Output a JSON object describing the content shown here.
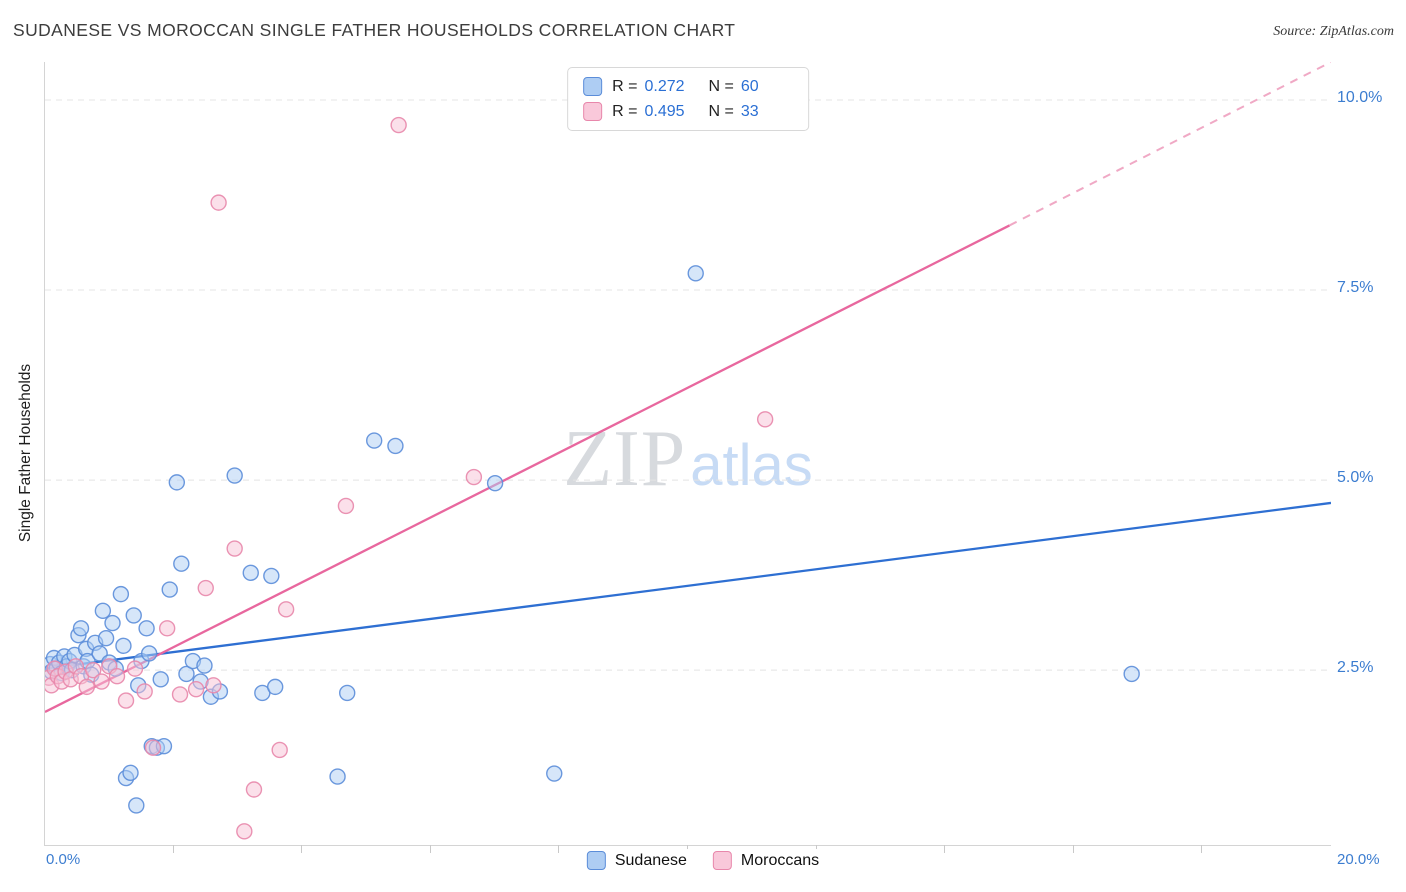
{
  "header": {
    "title": "SUDANESE VS MOROCCAN SINGLE FATHER HOUSEHOLDS CORRELATION CHART",
    "source": "Source: ZipAtlas.com"
  },
  "watermark": {
    "part1": "ZIP",
    "part2": "atlas"
  },
  "legend": {
    "r_label": "R =",
    "n_label": "N ="
  },
  "axes": {
    "y_title": "Single Father Households",
    "x_min_label": "0.0%",
    "x_max_label": "20.0%"
  },
  "chart_data": {
    "type": "scatter",
    "title": "Sudanese vs Moroccan Single Father Households",
    "ylabel": "Single Father Households",
    "xlim": [
      0,
      20
    ],
    "ylim": [
      0.2,
      10.5
    ],
    "grid": true,
    "legend_position": "top-center",
    "y_gridlines": [
      {
        "value": 2.5,
        "label": "2.5%"
      },
      {
        "value": 5.0,
        "label": "5.0%"
      },
      {
        "value": 7.5,
        "label": "7.5%"
      },
      {
        "value": 10.0,
        "label": "10.0%"
      }
    ],
    "x_ticks": [
      2,
      4,
      6,
      8,
      10,
      12,
      14,
      16,
      18
    ],
    "series": [
      {
        "name": "Sudanese",
        "r_display": "0.272",
        "n_display": "60",
        "fill": "#aecdf3",
        "stroke": "#5b8dd9",
        "trend_color": "#2e6fd2",
        "trend": {
          "x1": 0,
          "y1": 2.52,
          "x2": 20,
          "y2": 4.7
        },
        "points": [
          [
            0.08,
            2.58
          ],
          [
            0.1,
            2.48
          ],
          [
            0.14,
            2.66
          ],
          [
            0.18,
            2.52
          ],
          [
            0.22,
            2.6
          ],
          [
            0.26,
            2.46
          ],
          [
            0.3,
            2.68
          ],
          [
            0.34,
            2.55
          ],
          [
            0.38,
            2.62
          ],
          [
            0.42,
            2.5
          ],
          [
            0.46,
            2.7
          ],
          [
            0.52,
            2.96
          ],
          [
            0.56,
            3.05
          ],
          [
            0.6,
            2.55
          ],
          [
            0.64,
            2.78
          ],
          [
            0.66,
            2.62
          ],
          [
            0.72,
            2.44
          ],
          [
            0.78,
            2.86
          ],
          [
            0.85,
            2.72
          ],
          [
            0.9,
            3.28
          ],
          [
            0.95,
            2.92
          ],
          [
            1.0,
            2.6
          ],
          [
            1.05,
            3.12
          ],
          [
            1.1,
            2.52
          ],
          [
            1.18,
            3.5
          ],
          [
            1.22,
            2.82
          ],
          [
            1.26,
            1.08
          ],
          [
            1.33,
            1.15
          ],
          [
            1.38,
            3.22
          ],
          [
            1.42,
            0.72
          ],
          [
            1.45,
            2.3
          ],
          [
            1.5,
            2.62
          ],
          [
            1.58,
            3.05
          ],
          [
            1.62,
            2.72
          ],
          [
            1.66,
            1.5
          ],
          [
            1.74,
            1.48
          ],
          [
            1.8,
            2.38
          ],
          [
            1.85,
            1.5
          ],
          [
            1.94,
            3.56
          ],
          [
            2.05,
            4.97
          ],
          [
            2.12,
            3.9
          ],
          [
            2.2,
            2.45
          ],
          [
            2.3,
            2.62
          ],
          [
            2.42,
            2.35
          ],
          [
            2.48,
            2.56
          ],
          [
            2.58,
            2.15
          ],
          [
            2.72,
            2.22
          ],
          [
            2.95,
            5.06
          ],
          [
            3.2,
            3.78
          ],
          [
            3.38,
            2.2
          ],
          [
            3.52,
            3.74
          ],
          [
            3.58,
            2.28
          ],
          [
            4.55,
            1.1
          ],
          [
            4.7,
            2.2
          ],
          [
            5.12,
            5.52
          ],
          [
            5.45,
            5.45
          ],
          [
            7.0,
            4.96
          ],
          [
            7.92,
            1.14
          ],
          [
            10.12,
            7.72
          ],
          [
            16.9,
            2.45
          ]
        ]
      },
      {
        "name": "Moroccans",
        "r_display": "0.495",
        "n_display": "33",
        "fill": "#f7c2d6",
        "stroke": "#e887ab",
        "trend_color": "#e8679e",
        "trend_dash_color": "#f0a9c5",
        "trend": {
          "x1": 0,
          "y1": 1.95,
          "x2": 15,
          "y2": 8.35,
          "dash_x2": 20,
          "dash_y2": 10.5
        },
        "points": [
          [
            0.06,
            2.4
          ],
          [
            0.1,
            2.3
          ],
          [
            0.15,
            2.52
          ],
          [
            0.2,
            2.42
          ],
          [
            0.26,
            2.35
          ],
          [
            0.32,
            2.48
          ],
          [
            0.4,
            2.38
          ],
          [
            0.48,
            2.55
          ],
          [
            0.56,
            2.42
          ],
          [
            0.65,
            2.28
          ],
          [
            0.75,
            2.5
          ],
          [
            0.88,
            2.35
          ],
          [
            1.0,
            2.55
          ],
          [
            1.12,
            2.42
          ],
          [
            1.26,
            2.1
          ],
          [
            1.4,
            2.52
          ],
          [
            1.55,
            2.22
          ],
          [
            1.68,
            1.48
          ],
          [
            1.9,
            3.05
          ],
          [
            2.1,
            2.18
          ],
          [
            2.35,
            2.25
          ],
          [
            2.5,
            3.58
          ],
          [
            2.62,
            2.3
          ],
          [
            2.7,
            8.65
          ],
          [
            2.95,
            4.1
          ],
          [
            3.1,
            0.38
          ],
          [
            3.25,
            0.93
          ],
          [
            3.65,
            1.45
          ],
          [
            3.75,
            3.3
          ],
          [
            4.68,
            4.66
          ],
          [
            5.5,
            9.67
          ],
          [
            6.67,
            5.04
          ],
          [
            11.2,
            5.8
          ]
        ]
      }
    ]
  }
}
